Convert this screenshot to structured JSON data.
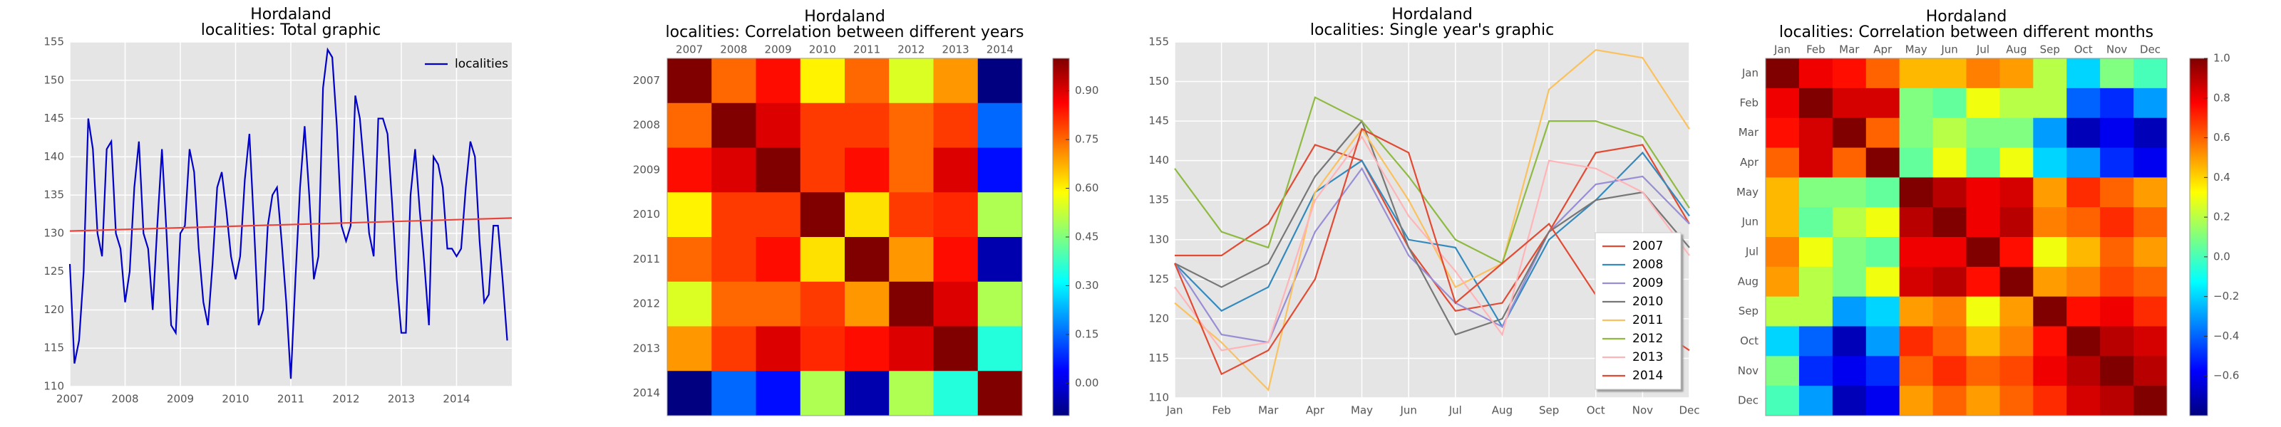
{
  "chart_data": [
    {
      "type": "line",
      "title": "Hordaland",
      "subtitle": "localities: Total graphic",
      "x": [
        2007,
        2007.083,
        2007.167,
        2007.25,
        2007.333,
        2007.417,
        2007.5,
        2007.583,
        2007.667,
        2007.75,
        2007.833,
        2007.917,
        2008,
        2008.083,
        2008.167,
        2008.25,
        2008.333,
        2008.417,
        2008.5,
        2008.583,
        2008.667,
        2008.75,
        2008.833,
        2008.917,
        2009,
        2009.083,
        2009.167,
        2009.25,
        2009.333,
        2009.417,
        2009.5,
        2009.583,
        2009.667,
        2009.75,
        2009.833,
        2009.917,
        2010,
        2010.083,
        2010.167,
        2010.25,
        2010.333,
        2010.417,
        2010.5,
        2010.583,
        2010.667,
        2010.75,
        2010.833,
        2010.917,
        2011,
        2011.083,
        2011.167,
        2011.25,
        2011.333,
        2011.417,
        2011.5,
        2011.583,
        2011.667,
        2011.75,
        2011.833,
        2011.917,
        2012,
        2012.083,
        2012.167,
        2012.25,
        2012.333,
        2012.417,
        2012.5,
        2012.583,
        2012.667,
        2012.75,
        2012.833,
        2012.917,
        2013,
        2013.083,
        2013.167,
        2013.25,
        2013.333,
        2013.417,
        2013.5,
        2013.583,
        2013.667,
        2013.75,
        2013.833,
        2013.917,
        2014,
        2014.083,
        2014.167,
        2014.25,
        2014.333,
        2014.417,
        2014.5,
        2014.583,
        2014.667,
        2014.75,
        2014.833,
        2014.917
      ],
      "series": [
        {
          "name": "localities",
          "color": "#0000c8",
          "values": [
            126,
            113,
            116,
            125,
            145,
            141,
            130,
            127,
            141,
            142,
            130,
            128,
            121,
            125,
            136,
            142,
            130,
            128,
            120,
            131,
            141,
            130,
            118,
            117,
            130,
            131,
            141,
            138,
            128,
            121,
            118,
            126,
            136,
            138,
            133,
            127,
            124,
            127,
            137,
            143,
            131,
            118,
            120,
            131,
            135,
            136,
            129,
            121,
            111,
            124,
            136,
            144,
            135,
            124,
            127,
            149,
            154,
            153,
            144,
            131,
            129,
            131,
            148,
            145,
            138,
            130,
            127,
            145,
            145,
            143,
            134,
            124,
            117,
            117,
            135,
            141,
            133,
            126,
            118,
            140,
            139,
            136,
            128,
            128,
            127,
            128,
            136,
            142,
            140,
            129,
            121,
            122,
            131,
            131,
            124,
            116
          ]
        },
        {
          "color": "#e8453c",
          "x": [
            2007,
            2015
          ],
          "values": [
            130.3,
            132
          ]
        }
      ],
      "xlim": [
        2007,
        2015
      ],
      "xticks": [
        2007,
        2008,
        2009,
        2010,
        2011,
        2012,
        2013,
        2014
      ],
      "ylim": [
        110,
        155
      ],
      "yticks": [
        110,
        115,
        120,
        125,
        130,
        135,
        140,
        145,
        150,
        155
      ],
      "grid": true,
      "legend": "upper right"
    },
    {
      "type": "heatmap",
      "title": "Hordaland",
      "subtitle": "localities: Correlation between different years",
      "categories": [
        "2007",
        "2008",
        "2009",
        "2010",
        "2011",
        "2012",
        "2013",
        "2014"
      ],
      "matrix": [
        [
          1.0,
          0.75,
          0.85,
          0.6,
          0.75,
          0.55,
          0.7,
          -0.1
        ],
        [
          0.75,
          1.0,
          0.9,
          0.8,
          0.8,
          0.75,
          0.8,
          0.15
        ],
        [
          0.85,
          0.9,
          1.0,
          0.8,
          0.85,
          0.75,
          0.9,
          0.05
        ],
        [
          0.6,
          0.8,
          0.8,
          1.0,
          0.62,
          0.8,
          0.82,
          0.5
        ],
        [
          0.75,
          0.8,
          0.85,
          0.62,
          1.0,
          0.7,
          0.85,
          -0.05
        ],
        [
          0.55,
          0.75,
          0.75,
          0.8,
          0.7,
          1.0,
          0.9,
          0.5
        ],
        [
          0.7,
          0.8,
          0.9,
          0.82,
          0.85,
          0.9,
          1.0,
          0.35
        ],
        [
          -0.1,
          0.15,
          0.05,
          0.5,
          -0.05,
          0.5,
          0.35,
          1.0
        ]
      ],
      "colormap": "jet",
      "clim": [
        -0.1,
        1.0
      ],
      "cticks": [
        {
          "value": 0,
          "label": "0.00"
        },
        {
          "value": 0.15,
          "label": "0.15"
        },
        {
          "value": 0.3,
          "label": "0.30"
        },
        {
          "value": 0.45,
          "label": "0.45"
        },
        {
          "value": 0.6,
          "label": "0.60"
        },
        {
          "value": 0.75,
          "label": "0.75"
        },
        {
          "value": 0.9,
          "label": "0.90"
        }
      ]
    },
    {
      "type": "line",
      "title": "Hordaland",
      "subtitle": "localities: Single year's graphic",
      "categories": [
        "Jan",
        "Feb",
        "Mar",
        "Apr",
        "May",
        "Jun",
        "Jul",
        "Aug",
        "Sep",
        "Oct",
        "Nov",
        "Dec"
      ],
      "series": [
        {
          "name": "2007",
          "color": "#e24a33",
          "values": [
            128,
            128,
            132,
            142,
            140,
            129,
            121,
            122,
            131,
            141,
            142,
            132
          ]
        },
        {
          "name": "2008",
          "color": "#348abd",
          "values": [
            127,
            121,
            124,
            136,
            140,
            130,
            129,
            119,
            130,
            135,
            141,
            133
          ]
        },
        {
          "name": "2009",
          "color": "#988ed5",
          "values": [
            127,
            118,
            117,
            131,
            139,
            128,
            122,
            119,
            131,
            137,
            138,
            132
          ]
        },
        {
          "name": "2010",
          "color": "#777777",
          "values": [
            127,
            124,
            127,
            138,
            145,
            129,
            118,
            120,
            131,
            135,
            136,
            129
          ]
        },
        {
          "name": "2011",
          "color": "#fbc15e",
          "values": [
            122,
            117,
            111,
            136,
            144,
            135,
            124,
            127,
            149,
            154,
            153,
            144
          ]
        },
        {
          "name": "2012",
          "color": "#8eba42",
          "values": [
            139,
            131,
            129,
            148,
            145,
            138,
            130,
            127,
            145,
            145,
            143,
            134
          ]
        },
        {
          "name": "2013",
          "color": "#ffb5b8",
          "values": [
            124,
            116,
            117,
            135,
            143,
            133,
            126,
            118,
            140,
            139,
            136,
            128
          ]
        },
        {
          "name": "2014",
          "color": "#e24a33",
          "values": [
            127,
            113,
            116,
            125,
            144,
            141,
            122,
            127,
            132,
            123,
            120,
            116
          ]
        }
      ],
      "ylim": [
        110,
        155
      ],
      "yticks": [
        110,
        115,
        120,
        125,
        130,
        135,
        140,
        145,
        150,
        155
      ],
      "grid": true,
      "legend": "lower right",
      "legend_frame": true
    },
    {
      "type": "heatmap",
      "title": "Hordaland",
      "subtitle": "localities: Correlation between different months",
      "categories": [
        "Jan",
        "Feb",
        "Mar",
        "Apr",
        "May",
        "Jun",
        "Jul",
        "Aug",
        "Sep",
        "Oct",
        "Nov",
        "Dec"
      ],
      "matrix": [
        [
          1,
          0.8,
          0.75,
          0.6,
          0.45,
          0.45,
          0.55,
          0.5,
          0.2,
          -0.2,
          0.1,
          0
        ],
        [
          0.8,
          1,
          0.85,
          0.85,
          0.1,
          0.05,
          0.3,
          0.2,
          0.2,
          -0.4,
          -0.5,
          -0.3
        ],
        [
          0.75,
          0.85,
          1,
          0.6,
          0.1,
          0.2,
          0.1,
          0.1,
          -0.3,
          -0.7,
          -0.6,
          -0.7
        ],
        [
          0.6,
          0.85,
          0.6,
          1,
          0.05,
          0.3,
          0.05,
          0.3,
          -0.2,
          -0.3,
          -0.5,
          -0.6
        ],
        [
          0.45,
          0.1,
          0.1,
          0.05,
          1,
          0.9,
          0.8,
          0.85,
          0.5,
          0.7,
          0.6,
          0.5
        ],
        [
          0.45,
          0.05,
          0.2,
          0.3,
          0.9,
          1,
          0.8,
          0.9,
          0.55,
          0.6,
          0.7,
          0.6
        ],
        [
          0.55,
          0.3,
          0.1,
          0.05,
          0.8,
          0.8,
          1,
          0.75,
          0.3,
          0.45,
          0.6,
          0.5
        ],
        [
          0.5,
          0.2,
          0.1,
          0.3,
          0.85,
          0.9,
          0.75,
          1,
          0.5,
          0.55,
          0.65,
          0.6
        ],
        [
          0.2,
          0.2,
          -0.3,
          -0.2,
          0.5,
          0.55,
          0.3,
          0.5,
          1,
          0.75,
          0.8,
          0.7
        ],
        [
          -0.2,
          -0.4,
          -0.7,
          -0.3,
          0.7,
          0.6,
          0.45,
          0.55,
          0.75,
          1,
          0.9,
          0.85
        ],
        [
          0.1,
          -0.5,
          -0.6,
          -0.5,
          0.6,
          0.7,
          0.6,
          0.65,
          0.8,
          0.9,
          1,
          0.9
        ],
        [
          0,
          -0.3,
          -0.7,
          -0.6,
          0.5,
          0.6,
          0.5,
          0.6,
          0.7,
          0.85,
          0.9,
          1
        ]
      ],
      "colormap": "jet",
      "clim": [
        -0.8,
        1.0
      ],
      "cticks": [
        {
          "value": -0.6,
          "label": "−0.6"
        },
        {
          "value": -0.4,
          "label": "−0.4"
        },
        {
          "value": -0.2,
          "label": "−0.2"
        },
        {
          "value": 0,
          "label": "0.0"
        },
        {
          "value": 0.2,
          "label": "0.2"
        },
        {
          "value": 0.4,
          "label": "0.4"
        },
        {
          "value": 0.6,
          "label": "0.6"
        },
        {
          "value": 0.8,
          "label": "0.8"
        },
        {
          "value": 1.0,
          "label": "1.0"
        }
      ]
    }
  ]
}
